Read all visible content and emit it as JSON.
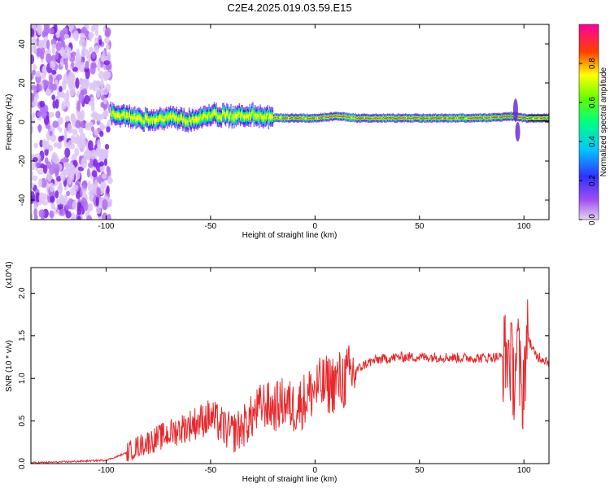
{
  "title": "C2E4.2025.019.03.59.E15",
  "colors": {
    "snr_line": "#e8282b",
    "background": "#ffffff"
  },
  "chart_data": [
    {
      "type": "heatmap",
      "title": "C2E4.2025.019.03.59.E15",
      "xlabel": "Height of straight line (km)",
      "ylabel": "Frequency (Hz)",
      "xlim": [
        -136,
        112
      ],
      "ylim": [
        -50,
        50
      ],
      "x_ticks": [
        -100,
        -50,
        0,
        50,
        100
      ],
      "y_ticks": [
        -40,
        -20,
        0,
        20,
        40
      ],
      "colorbar": {
        "label": "Normalized spectral amplitude",
        "range": [
          0.0,
          1.0
        ],
        "ticks": [
          0.0,
          0.2,
          0.4,
          0.6,
          0.8
        ],
        "colormap": "rainbow (violet-blue-cyan-green-yellow-red-magenta)"
      },
      "features": [
        {
          "region": "noise",
          "x_range": [
            -136,
            -98
          ],
          "freq_range": [
            -50,
            50
          ],
          "amplitude": "low, scattered violet"
        },
        {
          "region": "signal band",
          "x_range": [
            -98,
            -20
          ],
          "freq_center": 3,
          "freq_halfwidth": 5,
          "amplitude": "0.4-0.9, wavy"
        },
        {
          "region": "signal band",
          "x_range": [
            -20,
            112
          ],
          "freq_center": 2,
          "freq_halfwidth": 2,
          "amplitude": "0.5-1.0, steady"
        }
      ],
      "trace": {
        "x": [
          -98,
          -90,
          -80,
          -70,
          -60,
          -50,
          -40,
          -30,
          -20,
          -10,
          0,
          10,
          20,
          40,
          60,
          80,
          95,
          100,
          112
        ],
        "freq": [
          4,
          3,
          1,
          2,
          1,
          4,
          3,
          4,
          2,
          2,
          2,
          3,
          2,
          2,
          2,
          2,
          3,
          2,
          2
        ]
      }
    },
    {
      "type": "line",
      "xlabel": "Height of straight line (km)",
      "ylabel": "SNR (10 * v/v)",
      "y_multiplier": "(x10^4)",
      "xlim": [
        -136,
        112
      ],
      "ylim": [
        0,
        2.3
      ],
      "x_ticks": [
        -100,
        -50,
        0,
        50,
        100
      ],
      "y_ticks": [
        0.0,
        0.5,
        1.0,
        1.5,
        2.0
      ],
      "series": [
        {
          "x": [
            -136,
            -120,
            -100,
            -95,
            -90,
            -85,
            -80,
            -75,
            -70,
            -65,
            -60,
            -55,
            -50,
            -45,
            -40,
            -35,
            -30,
            -25,
            -20,
            -15,
            -10,
            -5,
            0,
            5,
            10,
            15,
            20,
            25,
            30,
            40,
            50,
            60,
            70,
            80,
            85,
            90,
            93,
            95,
            97,
            99,
            100,
            102,
            105,
            112
          ],
          "values": [
            0.01,
            0.02,
            0.04,
            0.08,
            0.13,
            0.2,
            0.25,
            0.3,
            0.35,
            0.4,
            0.45,
            0.5,
            0.55,
            0.45,
            0.35,
            0.42,
            0.55,
            0.7,
            0.65,
            0.72,
            0.65,
            0.75,
            0.88,
            0.92,
            0.95,
            1.0,
            1.1,
            1.18,
            1.22,
            1.25,
            1.25,
            1.25,
            1.24,
            1.24,
            1.25,
            1.25,
            1.3,
            1.0,
            1.4,
            0.7,
            1.1,
            1.5,
            1.28,
            1.2
          ]
        }
      ]
    }
  ]
}
